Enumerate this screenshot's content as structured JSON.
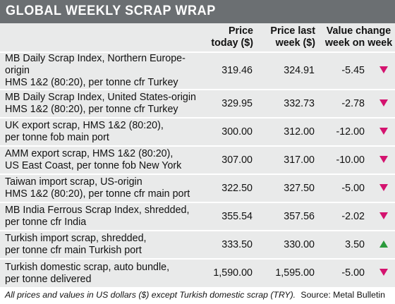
{
  "title": "GLOBAL WEEKLY SCRAP WRAP",
  "columns": {
    "price_today": "Price today ($)",
    "price_last_week": "Price last week ($)",
    "value_change": "Value change week on week"
  },
  "colors": {
    "header_bg": "#6b6f72",
    "table_bg": "#e9eaea",
    "down": "#d4136f",
    "up": "#2a9a3b"
  },
  "rows": [
    {
      "line1": "MB Daily Scrap Index, Northern Europe-origin",
      "line2": "HMS 1&2 (80:20), per tonne cfr Turkey",
      "today": "319.46",
      "last_week": "324.91",
      "change": "-5.45",
      "direction": "down"
    },
    {
      "line1": "MB Daily Scrap Index, United States-origin",
      "line2": "HMS 1&2 (80:20), per tonne cfr Turkey",
      "today": "329.95",
      "last_week": "332.73",
      "change": "-2.78",
      "direction": "down"
    },
    {
      "line1": "UK export scrap, HMS 1&2 (80:20),",
      "line2": "per tonne fob main port",
      "today": "300.00",
      "last_week": "312.00",
      "change": "-12.00",
      "direction": "down"
    },
    {
      "line1": "AMM export scrap, HMS 1&2 (80:20),",
      "line2": "US East Coast, per tonne fob New York",
      "today": "307.00",
      "last_week": "317.00",
      "change": "-10.00",
      "direction": "down"
    },
    {
      "line1": "Taiwan import scrap, US-origin",
      "line2": "HMS 1&2 (80:20), per tonne cfr main port",
      "today": "322.50",
      "last_week": "327.50",
      "change": "-5.00",
      "direction": "down"
    },
    {
      "line1": "MB India Ferrous Scrap Index, shredded,",
      "line2": "per tonne cfr India",
      "today": "355.54",
      "last_week": "357.56",
      "change": "-2.02",
      "direction": "down"
    },
    {
      "line1": "Turkish import scrap, shredded,",
      "line2": "per tonne cfr main Turkish port",
      "today": "333.50",
      "last_week": "330.00",
      "change": "3.50",
      "direction": "up"
    },
    {
      "line1": "Turkish domestic scrap, auto bundle,",
      "line2": "per tonne delivered",
      "today": "1,590.00",
      "last_week": "1,595.00",
      "change": "-5.00",
      "direction": "down"
    }
  ],
  "footnote": "All prices and values in US dollars ($) except Turkish domestic scrap (TRY).",
  "source": "Source: Metal Bulletin"
}
